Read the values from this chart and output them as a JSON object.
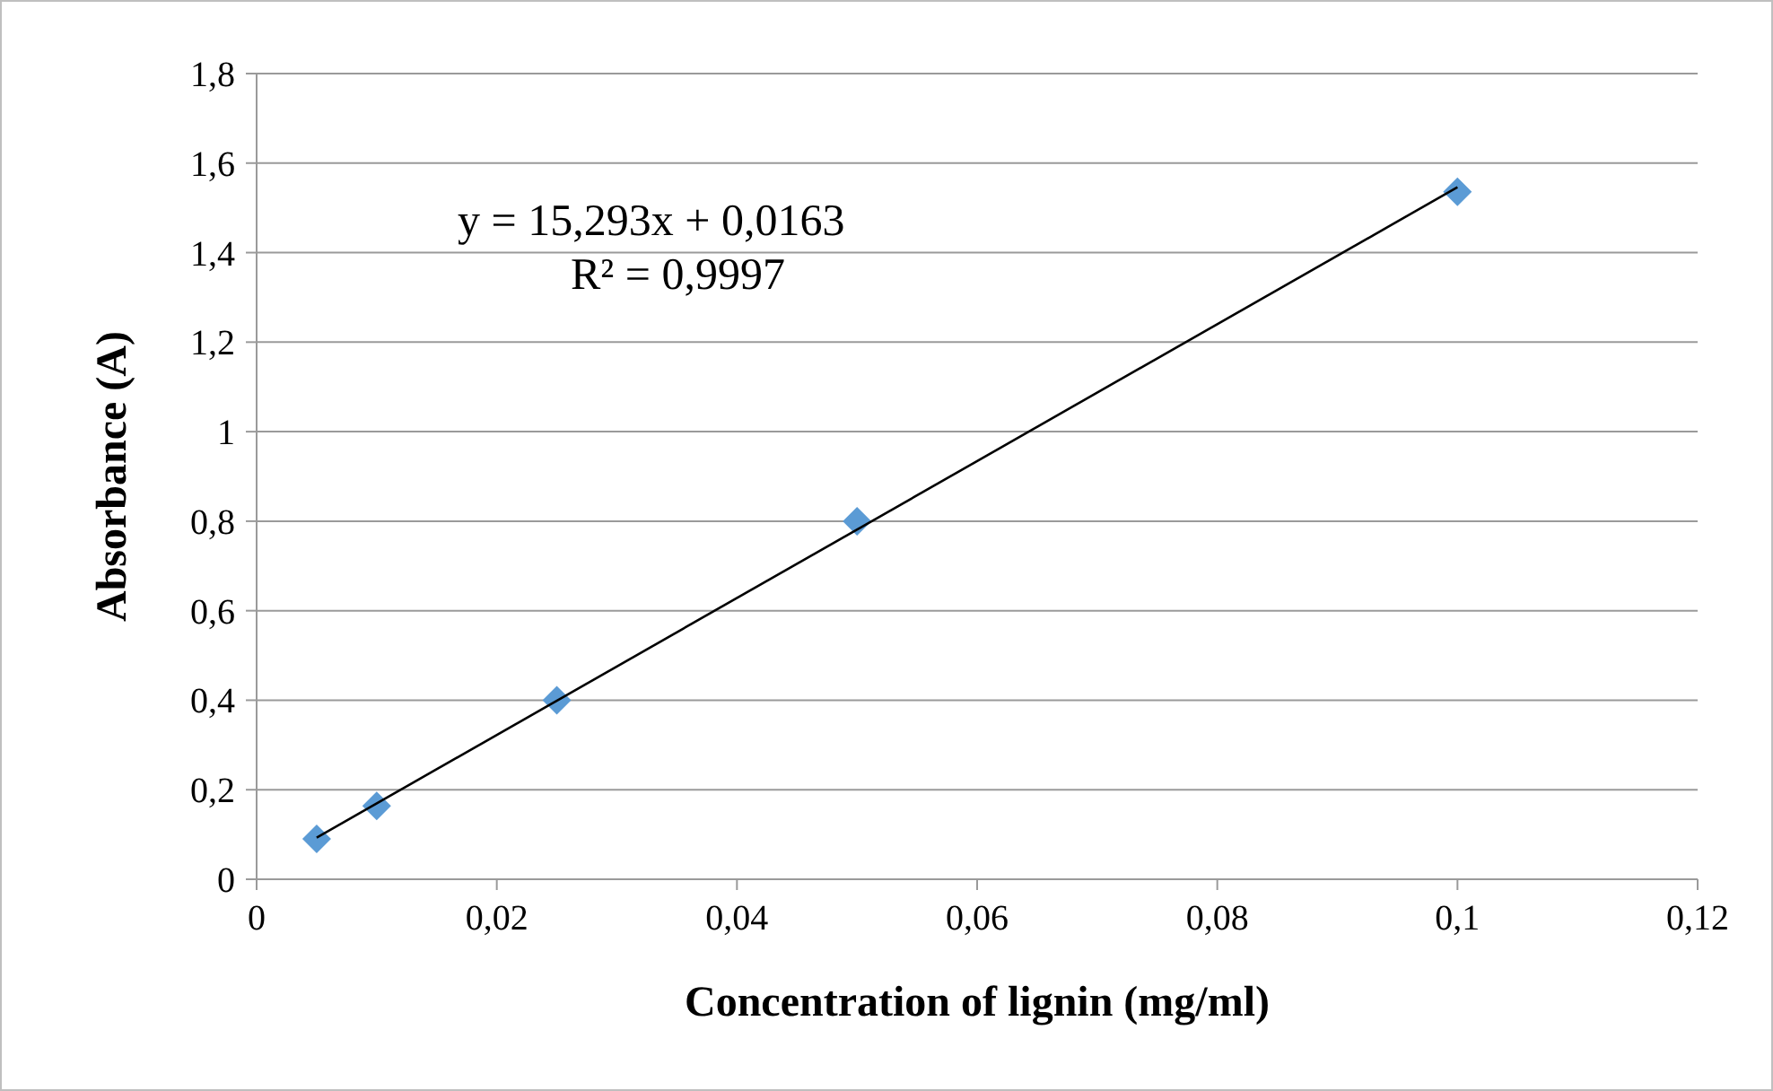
{
  "chart_data": {
    "type": "scatter",
    "xlabel": "Concentration of lignin (mg/ml)",
    "ylabel": "Absorbance (A)",
    "xlim": [
      0,
      0.12
    ],
    "ylim": [
      0,
      1.8
    ],
    "xticks": [
      0,
      {
        "value": 0.02,
        "label": "0,02"
      },
      {
        "value": 0.04,
        "label": "0,04"
      },
      {
        "value": 0.06,
        "label": "0,06"
      },
      {
        "value": 0.08,
        "label": "0,08"
      },
      {
        "value": 0.1,
        "label": "0,1"
      },
      {
        "value": 0.12,
        "label": "0,12"
      }
    ],
    "yticks": [
      0,
      {
        "value": 0.2,
        "label": "0,2"
      },
      {
        "value": 0.4,
        "label": "0,4"
      },
      {
        "value": 0.6,
        "label": "0,6"
      },
      {
        "value": 0.8,
        "label": "0,8"
      },
      1,
      {
        "value": 1.2,
        "label": "1,2"
      },
      {
        "value": 1.4,
        "label": "1,4"
      },
      {
        "value": 1.6,
        "label": "1,6"
      },
      {
        "value": 1.8,
        "label": "1,8"
      }
    ],
    "grid": "y",
    "marker": "diamond",
    "series": [
      {
        "color": "#5b9bd5",
        "x": [
          0.005,
          0.01,
          0.025,
          0.05,
          0.1
        ],
        "values": [
          0.09,
          0.164,
          0.4,
          0.8,
          1.536
        ]
      },
      {
        "type": "line",
        "marker": "none",
        "color": "#000000",
        "x": [
          0.005,
          0.1
        ],
        "values": [
          0.093,
          1.546
        ]
      }
    ],
    "annotations": [
      "y = 15,293x + 0,0163",
      "R² = 0,9997"
    ]
  }
}
